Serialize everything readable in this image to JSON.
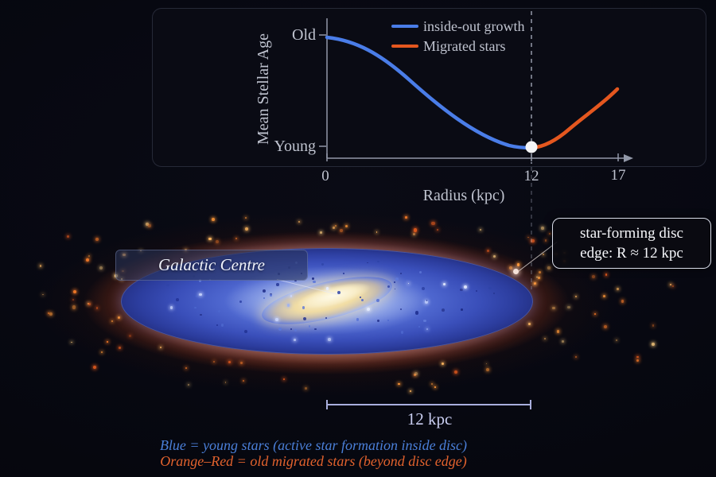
{
  "chart": {
    "ylabel": "Mean Stellar Age",
    "xlabel": "Radius (kpc)",
    "y_top_label": "Old",
    "y_bottom_label": "Young",
    "x_ticks": [
      "0",
      "12",
      "17"
    ],
    "legend": [
      {
        "label": "inside-out growth",
        "color": "#4a7de8"
      },
      {
        "label": "Migrated stars",
        "color": "#e4571f"
      }
    ]
  },
  "chart_data": {
    "type": "line",
    "title": "",
    "xlabel": "Radius (kpc)",
    "ylabel": "Mean Stellar Age",
    "xlim": [
      0,
      17.5
    ],
    "x_ticks": [
      0,
      12,
      17
    ],
    "y_tick_labels": [
      "Old",
      "Young"
    ],
    "y_axis_qualitative": "Old (top) to Young (bottom)",
    "grid": false,
    "legend_position": "top-center",
    "series": [
      {
        "name": "inside-out growth",
        "color": "#4a7de8",
        "x": [
          0,
          2,
          4,
          6,
          8,
          10,
          12
        ],
        "y_relative_age": [
          1.0,
          0.93,
          0.74,
          0.5,
          0.27,
          0.08,
          0.0
        ]
      },
      {
        "name": "Migrated stars",
        "color": "#e4571f",
        "x": [
          12,
          13.5,
          15,
          17
        ],
        "y_relative_age": [
          0.0,
          0.07,
          0.24,
          0.53
        ]
      }
    ],
    "annotations": [
      {
        "type": "marker",
        "x": 12,
        "y_relative_age": 0.0,
        "style": "white-dot"
      },
      {
        "type": "vline",
        "x": 12,
        "style": "dashed",
        "meaning": "star-forming disc edge"
      }
    ]
  },
  "galaxy": {
    "centre_label": "Galactic Centre",
    "callout_line1": "star-forming disc",
    "callout_line2": "edge: R ≈ 12 kpc",
    "scale_bar_label": "12 kpc"
  },
  "captions": {
    "blue": {
      "text": "Blue = young stars (active star formation inside disc)",
      "color": "#4a7fd8"
    },
    "orange": {
      "text": "Orange–Red = old migrated stars (beyond disc edge)",
      "color": "#e2622d"
    }
  },
  "colors": {
    "curve_blue": "#4a7de8",
    "curve_orange": "#e4571f",
    "axis": "#9298a8",
    "chart_text": "#bfc3cf",
    "marker_dot": "#f5f5f7",
    "disc_blue": "#4f68d0",
    "halo_orange": "#e06a2e",
    "bar_yellow": "#f4deA0"
  }
}
